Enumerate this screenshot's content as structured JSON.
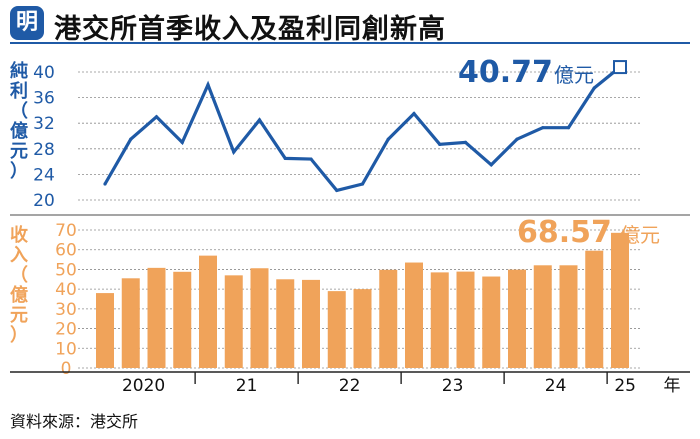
{
  "header": {
    "logo": "明",
    "title": "港交所首季收入及盈利同創新高"
  },
  "colors": {
    "profit": "#1f5aa6",
    "revenue": "#f0a35a",
    "title_bar": "#1f5aa6",
    "grid": "#8c8c8c"
  },
  "footer": {
    "source": "資料來源：港交所"
  },
  "chart_data": [
    {
      "type": "line",
      "ylabel": "純利（億元）",
      "ylim": [
        20,
        40
      ],
      "yticks": [
        20,
        24,
        28,
        32,
        36,
        40
      ],
      "values": [
        22.5,
        29.5,
        33.0,
        29.0,
        38.0,
        27.5,
        32.5,
        26.5,
        26.4,
        21.5,
        22.5,
        29.5,
        33.5,
        28.7,
        29.0,
        25.5,
        29.5,
        31.3,
        31.3,
        37.5,
        40.77
      ],
      "callout": {
        "value": "40.77",
        "unit": "億元"
      }
    },
    {
      "type": "bar",
      "ylabel": "收入（億元）",
      "ylim": [
        0,
        70
      ],
      "yticks": [
        0,
        10,
        20,
        30,
        40,
        50,
        60,
        70
      ],
      "values": [
        38.0,
        45.5,
        50.8,
        48.8,
        57.0,
        47.0,
        50.6,
        45.0,
        44.7,
        39.0,
        40.0,
        49.8,
        53.5,
        48.5,
        48.9,
        46.4,
        49.9,
        52.1,
        52.1,
        59.5,
        68.57
      ],
      "callout": {
        "value": "68.57",
        "unit": "億元"
      },
      "x_labels": [
        "2020",
        "21",
        "22",
        "23",
        "24",
        "25"
      ],
      "x_unit": "年"
    }
  ]
}
